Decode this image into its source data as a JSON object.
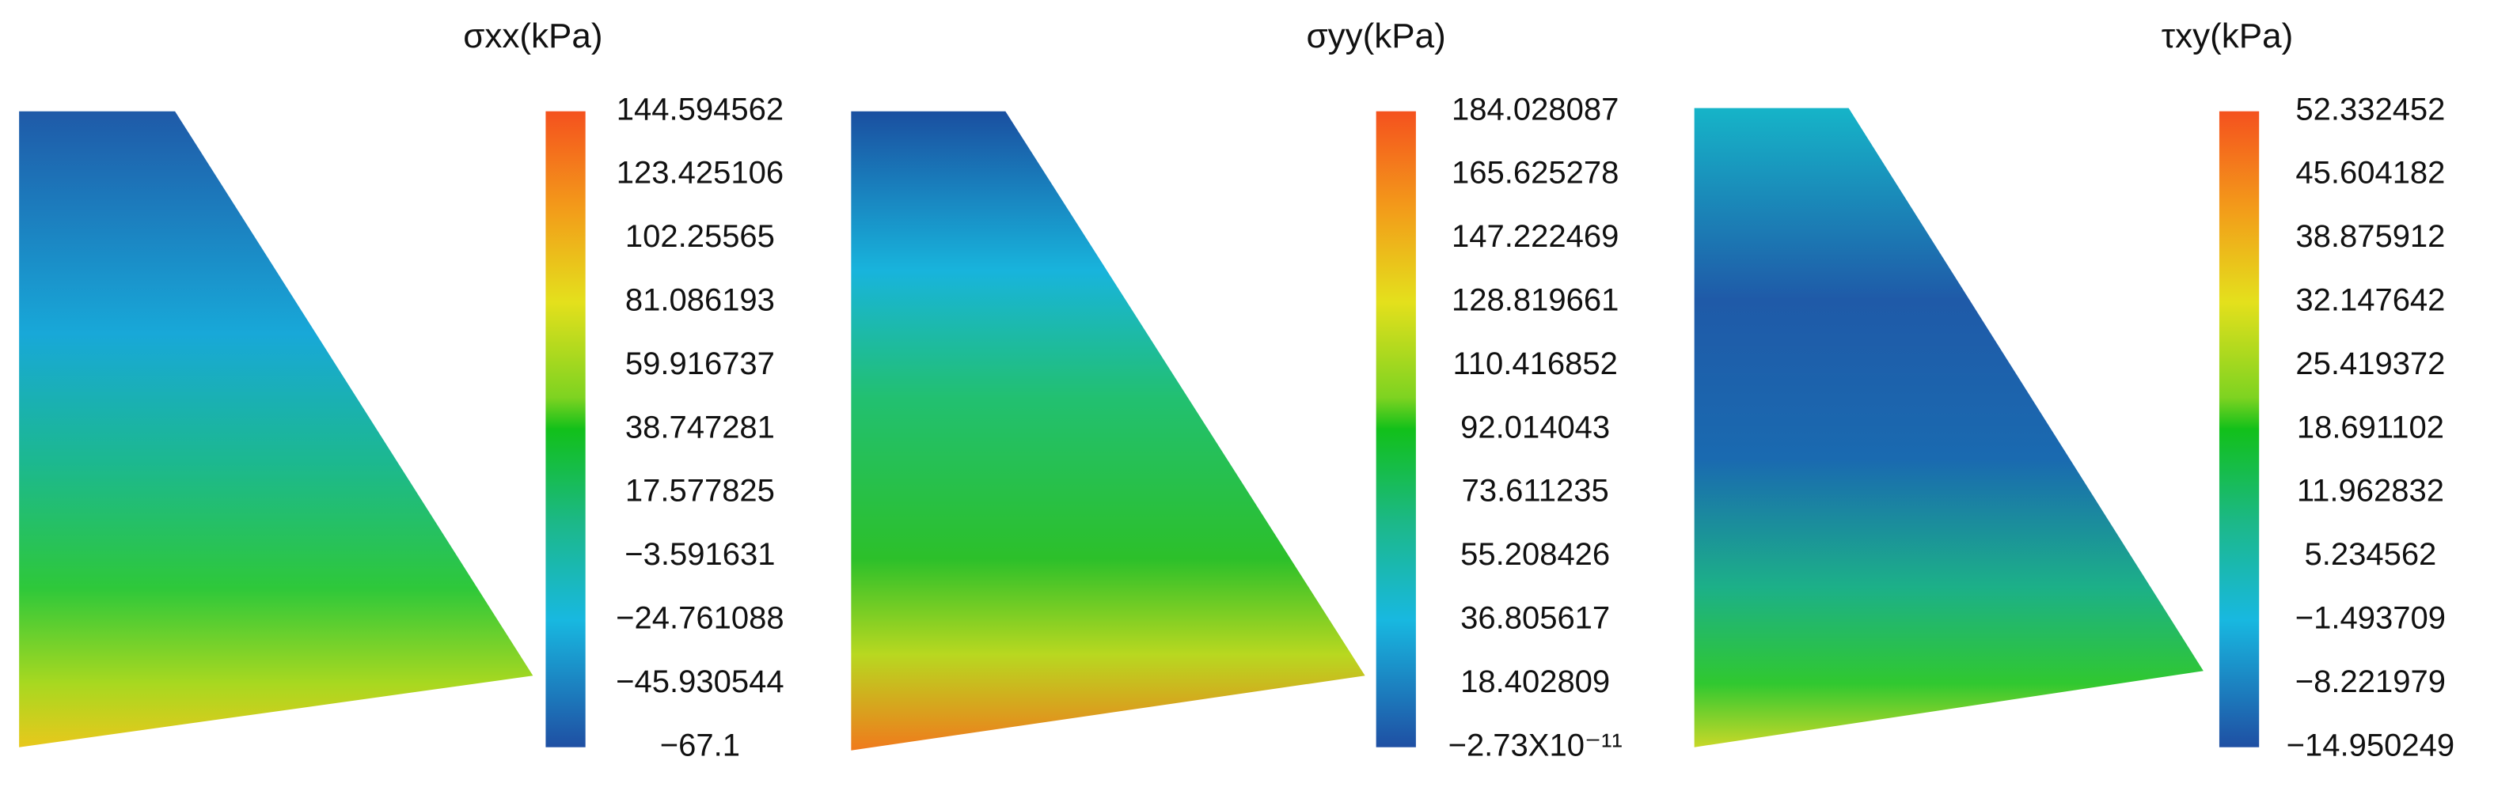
{
  "chart_data": [
    {
      "type": "contour",
      "title": "σxx(kPa)",
      "colorbar_ticks": [
        144.594562,
        123.425106,
        102.25565,
        81.086193,
        59.916737,
        38.747281,
        17.577825,
        {
          "value": -3.591631,
          "label": "−3.591631"
        },
        {
          "value": -24.761088,
          "label": "−24.761088"
        },
        {
          "value": -45.930544,
          "label": "−45.930544"
        },
        {
          "value": -67.1,
          "label": "−67.1"
        }
      ]
    },
    {
      "type": "contour",
      "title": "σyy(kPa)",
      "colorbar_ticks": [
        184.028087,
        165.625278,
        147.222469,
        128.819661,
        110.416852,
        92.014043,
        73.611235,
        55.208426,
        36.805617,
        18.402809,
        {
          "value": -2.73e-11,
          "label": "−2.73X10⁻¹¹"
        }
      ]
    },
    {
      "type": "contour",
      "title": "τxy(kPa)",
      "colorbar_ticks": [
        52.332452,
        45.604182,
        38.875912,
        32.147642,
        25.419372,
        18.691102,
        11.962832,
        5.234562,
        {
          "value": -1.493709,
          "label": "−1.493709"
        },
        {
          "value": -8.221979,
          "label": "−8.221979"
        },
        {
          "value": -14.950249,
          "label": "−14.950249"
        }
      ]
    }
  ]
}
